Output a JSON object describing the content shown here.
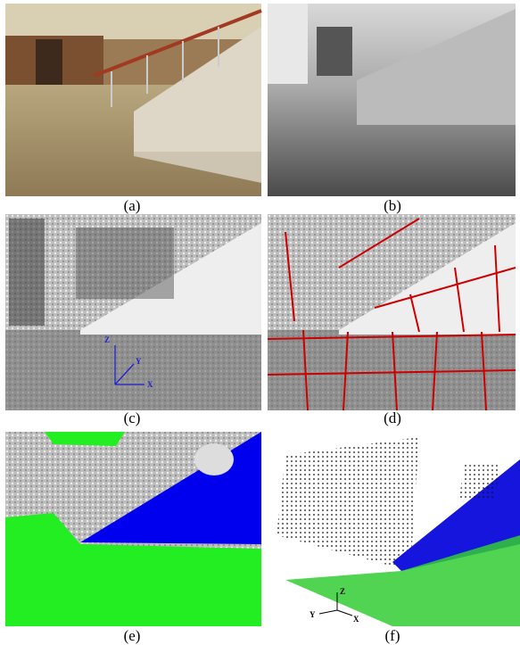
{
  "figure": {
    "panels": [
      {
        "caption": "(a)"
      },
      {
        "caption": "(b)"
      },
      {
        "caption": "(c)",
        "axis_labels": [
          "Z",
          "Y",
          "X"
        ]
      },
      {
        "caption": "(d)"
      },
      {
        "caption": "(e)"
      },
      {
        "caption": "(f)",
        "axis_labels": [
          "Y",
          "Z",
          "X"
        ]
      }
    ]
  }
}
